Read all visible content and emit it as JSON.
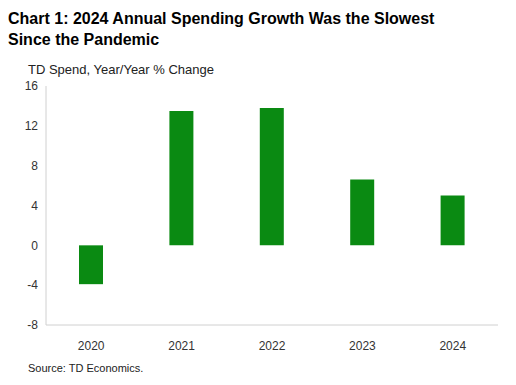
{
  "chart_data": {
    "type": "bar",
    "title": "Chart 1: 2024 Annual Spending Growth Was the Slowest Since the Pandemic",
    "y_label": "TD Spend, Year/Year % Change",
    "source": "Source: TD Economics.",
    "categories": [
      "2020",
      "2021",
      "2022",
      "2023",
      "2024"
    ],
    "values": [
      -3.9,
      13.5,
      13.8,
      6.6,
      5.0
    ],
    "color": "#0a8a12",
    "ylim": [
      -8,
      16
    ],
    "yticks": [
      -8,
      -4,
      0,
      4,
      8,
      12,
      16
    ],
    "grid": false
  }
}
